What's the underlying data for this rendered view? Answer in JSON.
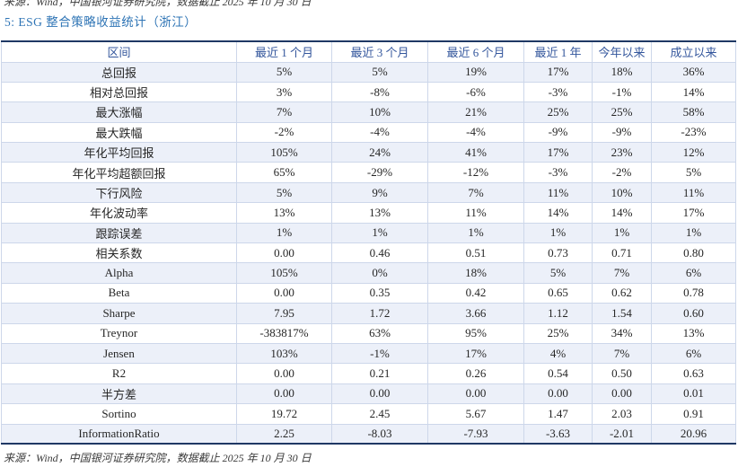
{
  "page": {
    "top_source": "来源：Wind，中国银河证券研究院，数据截止 2025 年 10 月 30 日",
    "title": "5: ESG 整合策略收益统计（浙江）",
    "bottom_source": "来源：Wind，中国银河证券研究院，数据截止 2025 年 10 月 30 日"
  },
  "table": {
    "headers": [
      "区间",
      "最近 1 个月",
      "最近 3 个月",
      "最近 6 个月",
      "最近 1 年",
      "今年以来",
      "成立以来"
    ],
    "rows": [
      [
        "总回报",
        "5%",
        "5%",
        "19%",
        "17%",
        "18%",
        "36%"
      ],
      [
        "相对总回报",
        "3%",
        "-8%",
        "-6%",
        "-3%",
        "-1%",
        "14%"
      ],
      [
        "最大涨幅",
        "7%",
        "10%",
        "21%",
        "25%",
        "25%",
        "58%"
      ],
      [
        "最大跌幅",
        "-2%",
        "-4%",
        "-4%",
        "-9%",
        "-9%",
        "-23%"
      ],
      [
        "年化平均回报",
        "105%",
        "24%",
        "41%",
        "17%",
        "23%",
        "12%"
      ],
      [
        "年化平均超额回报",
        "65%",
        "-29%",
        "-12%",
        "-3%",
        "-2%",
        "5%"
      ],
      [
        "下行风险",
        "5%",
        "9%",
        "7%",
        "11%",
        "10%",
        "11%"
      ],
      [
        "年化波动率",
        "13%",
        "13%",
        "11%",
        "14%",
        "14%",
        "17%"
      ],
      [
        "跟踪误差",
        "1%",
        "1%",
        "1%",
        "1%",
        "1%",
        "1%"
      ],
      [
        "相关系数",
        "0.00",
        "0.46",
        "0.51",
        "0.73",
        "0.71",
        "0.80"
      ],
      [
        "Alpha",
        "105%",
        "0%",
        "18%",
        "5%",
        "7%",
        "6%"
      ],
      [
        "Beta",
        "0.00",
        "0.35",
        "0.42",
        "0.65",
        "0.62",
        "0.78"
      ],
      [
        "Sharpe",
        "7.95",
        "1.72",
        "3.66",
        "1.12",
        "1.54",
        "0.60"
      ],
      [
        "Treynor",
        "-383817%",
        "63%",
        "95%",
        "25%",
        "34%",
        "13%"
      ],
      [
        "Jensen",
        "103%",
        "-1%",
        "17%",
        "4%",
        "7%",
        "6%"
      ],
      [
        "R2",
        "0.00",
        "0.21",
        "0.26",
        "0.54",
        "0.50",
        "0.63"
      ],
      [
        "半方差",
        "0.00",
        "0.00",
        "0.00",
        "0.00",
        "0.00",
        "0.01"
      ],
      [
        "Sortino",
        "19.72",
        "2.45",
        "5.67",
        "1.47",
        "2.03",
        "0.91"
      ],
      [
        "InformationRatio",
        "2.25",
        "-8.03",
        "-7.93",
        "-3.63",
        "-2.01",
        "20.96"
      ]
    ]
  },
  "colors": {
    "title_blue": "#2E74B5",
    "header_blue": "#33569C",
    "navy": "#1F3864",
    "alt_bg": "#ECF0F9",
    "cell_border": "#CDD7EA"
  }
}
